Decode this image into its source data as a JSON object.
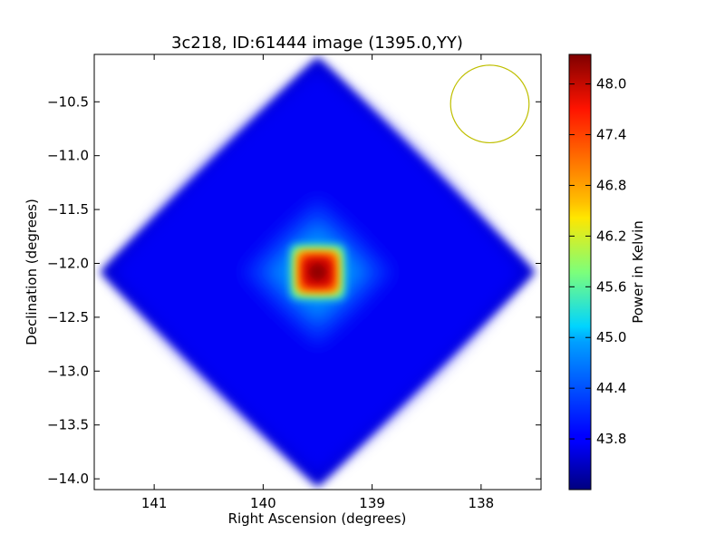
{
  "chart_data": {
    "type": "heatmap",
    "title": "3c218, ID:61444 image (1395.0,YY)",
    "xlabel": "Right Ascension (degrees)",
    "ylabel": "Declination (degrees)",
    "xlim": [
      141.55,
      137.45
    ],
    "ylim": [
      -14.1,
      -10.06
    ],
    "x_ticks": [
      141,
      140,
      139,
      138
    ],
    "y_ticks": [
      -10.5,
      -11.0,
      -11.5,
      -12.0,
      -12.5,
      -13.0,
      -13.5,
      -14.0
    ],
    "colorbar": {
      "label": "Power in Kelvin",
      "range": [
        43.2,
        48.35
      ],
      "ticks": [
        48.0,
        47.4,
        46.8,
        46.2,
        45.6,
        45.0,
        44.4,
        43.8
      ],
      "colormap": "jet"
    },
    "image": {
      "shape": "diamond",
      "center_ra": 139.5,
      "center_dec": -12.08,
      "half_width_ra": 2.0,
      "half_width_dec": 2.0,
      "background_level": 43.6,
      "peak_level": 48.35,
      "peak_ra": 139.5,
      "peak_dec": -12.08
    },
    "beam": {
      "center_ra": 137.92,
      "center_dec": -10.52,
      "radius_ra": 0.36,
      "radius_dec": 0.36,
      "color": "#bfbf00"
    },
    "grid": false
  }
}
